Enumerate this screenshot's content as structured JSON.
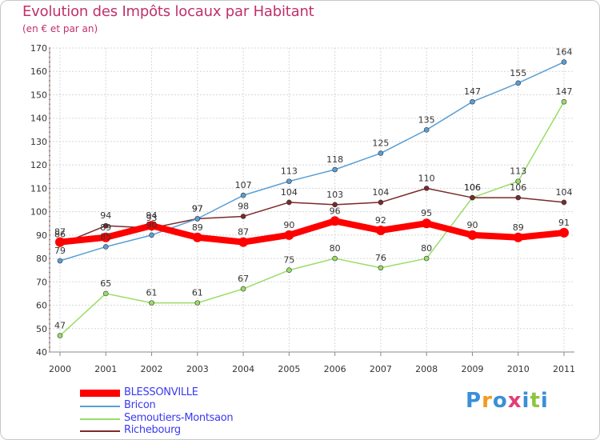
{
  "header": {
    "title": "Evolution des Impôts locaux par Habitant",
    "subtitle": "(en € et par an)"
  },
  "logo": {
    "text": "Proxiti",
    "letter_colors": [
      "#3a8fd8",
      "#f39a1e",
      "#3a8fd8",
      "#e23c7a",
      "#3a8fd8",
      "#8cc63f",
      "#3a8fd8"
    ]
  },
  "chart_data": {
    "type": "line",
    "title": "Evolution des Impôts locaux par Habitant",
    "subtitle": "(en € et par an)",
    "xlabel": "",
    "ylabel": "",
    "x": [
      "2000",
      "2001",
      "2002",
      "2003",
      "2004",
      "2005",
      "2006",
      "2007",
      "2008",
      "2009",
      "2010",
      "2011"
    ],
    "ylim": [
      40,
      170
    ],
    "yticks": [
      40,
      50,
      60,
      70,
      80,
      90,
      100,
      110,
      120,
      130,
      140,
      150,
      160,
      170
    ],
    "grid": true,
    "legend_position": "bottom-left",
    "series": [
      {
        "name": "BLESSONVILLE",
        "color": "#ff0000",
        "values": [
          87,
          89,
          94,
          89,
          87,
          90,
          96,
          92,
          95,
          90,
          89,
          91
        ]
      },
      {
        "name": "Bricon",
        "color": "#5a9fd4",
        "values": [
          79,
          85,
          90,
          97,
          107,
          113,
          118,
          125,
          135,
          147,
          155,
          164
        ]
      },
      {
        "name": "Semoutiers-Montsaon",
        "color": "#99dd66",
        "values": [
          47,
          65,
          61,
          61,
          67,
          75,
          80,
          76,
          80,
          106,
          113,
          147
        ]
      },
      {
        "name": "Richebourg",
        "color": "#7b2a2a",
        "values": [
          86,
          94,
          93,
          97,
          98,
          104,
          103,
          104,
          110,
          106,
          106,
          104
        ]
      }
    ]
  }
}
